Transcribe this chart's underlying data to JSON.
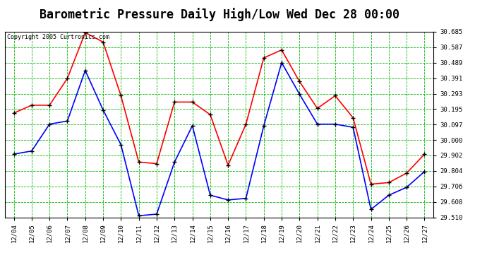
{
  "title": "Barometric Pressure Daily High/Low Wed Dec 28 00:00",
  "copyright": "Copyright 2005 Curtronics.com",
  "x_labels": [
    "12/04",
    "12/05",
    "12/06",
    "12/07",
    "12/08",
    "12/09",
    "12/10",
    "12/11",
    "12/12",
    "12/13",
    "12/14",
    "12/15",
    "12/16",
    "12/17",
    "12/18",
    "12/19",
    "12/20",
    "12/21",
    "12/22",
    "12/23",
    "12/24",
    "12/25",
    "12/26",
    "12/27"
  ],
  "high_values": [
    30.17,
    30.22,
    30.22,
    30.39,
    30.68,
    30.62,
    30.28,
    29.86,
    29.85,
    30.24,
    30.24,
    30.16,
    29.84,
    30.1,
    30.52,
    30.57,
    30.37,
    30.2,
    30.28,
    30.14,
    29.72,
    29.73,
    29.79,
    29.91
  ],
  "low_values": [
    29.91,
    29.93,
    30.1,
    30.12,
    30.44,
    30.19,
    29.97,
    29.52,
    29.53,
    29.86,
    30.09,
    29.65,
    29.62,
    29.63,
    30.09,
    30.49,
    30.29,
    30.1,
    30.1,
    30.08,
    29.56,
    29.65,
    29.7,
    29.8
  ],
  "high_color": "#ff0000",
  "low_color": "#0000ff",
  "bg_color": "#ffffff",
  "plot_bg_color": "#ffffff",
  "grid_color": "#00bb00",
  "title_fontsize": 12,
  "yticks": [
    29.51,
    29.608,
    29.706,
    29.804,
    29.902,
    30.0,
    30.097,
    30.195,
    30.293,
    30.391,
    30.489,
    30.587,
    30.685
  ],
  "ylim_min": 29.51,
  "ylim_max": 30.685,
  "marker": "+",
  "marker_color": "#000000",
  "marker_size": 5,
  "line_width": 1.2
}
